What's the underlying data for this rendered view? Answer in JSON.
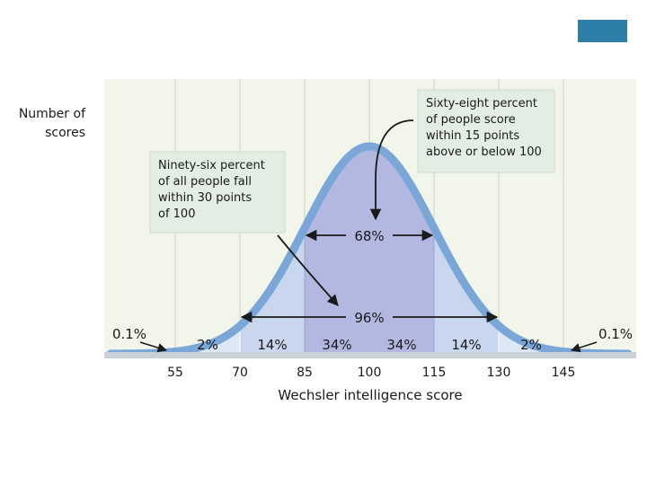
{
  "chart_data": {
    "type": "area",
    "title": "",
    "xlabel": "Wechsler intelligence score",
    "ylabel": "Number of scores",
    "ylabel_lines": [
      "Number of",
      "scores"
    ],
    "x_ticks": [
      55,
      70,
      85,
      100,
      115,
      130,
      145
    ],
    "xlim": [
      40,
      160
    ],
    "distribution": {
      "mean": 100,
      "sd": 15
    },
    "grid": true,
    "bands": [
      {
        "from": 55,
        "to": 70,
        "label": "2%"
      },
      {
        "from": 70,
        "to": 85,
        "label": "14%"
      },
      {
        "from": 85,
        "to": 100,
        "label": "34%"
      },
      {
        "from": 100,
        "to": 115,
        "label": "34%"
      },
      {
        "from": 115,
        "to": 130,
        "label": "14%"
      },
      {
        "from": 130,
        "to": 145,
        "label": "2%"
      }
    ],
    "tails": [
      {
        "side": "left",
        "label": "0.1%"
      },
      {
        "side": "right",
        "label": "0.1%"
      }
    ],
    "ranges": [
      {
        "from": 85,
        "to": 115,
        "label": "68%"
      },
      {
        "from": 70,
        "to": 130,
        "label": "96%"
      }
    ],
    "annotations": [
      {
        "id": "ninety-six",
        "lines": [
          "Ninety-six percent",
          "of all people fall",
          "within 30 points",
          "of 100"
        ]
      },
      {
        "id": "sixty-eight",
        "lines": [
          "Sixty-eight percent",
          "of people score",
          "within 15 points",
          "above or below 100"
        ]
      }
    ],
    "colors": {
      "curve": "#7aa7d8",
      "outer_fill": "#dde8f6",
      "middle_fill": "#c8d6ee",
      "center_fill": "#b3b8e0",
      "panel_bg": "#f2f6ea",
      "grid": "#d4d8cc",
      "callout_bg": "#e3ede3",
      "accent_box": "#2e7fa8"
    }
  }
}
